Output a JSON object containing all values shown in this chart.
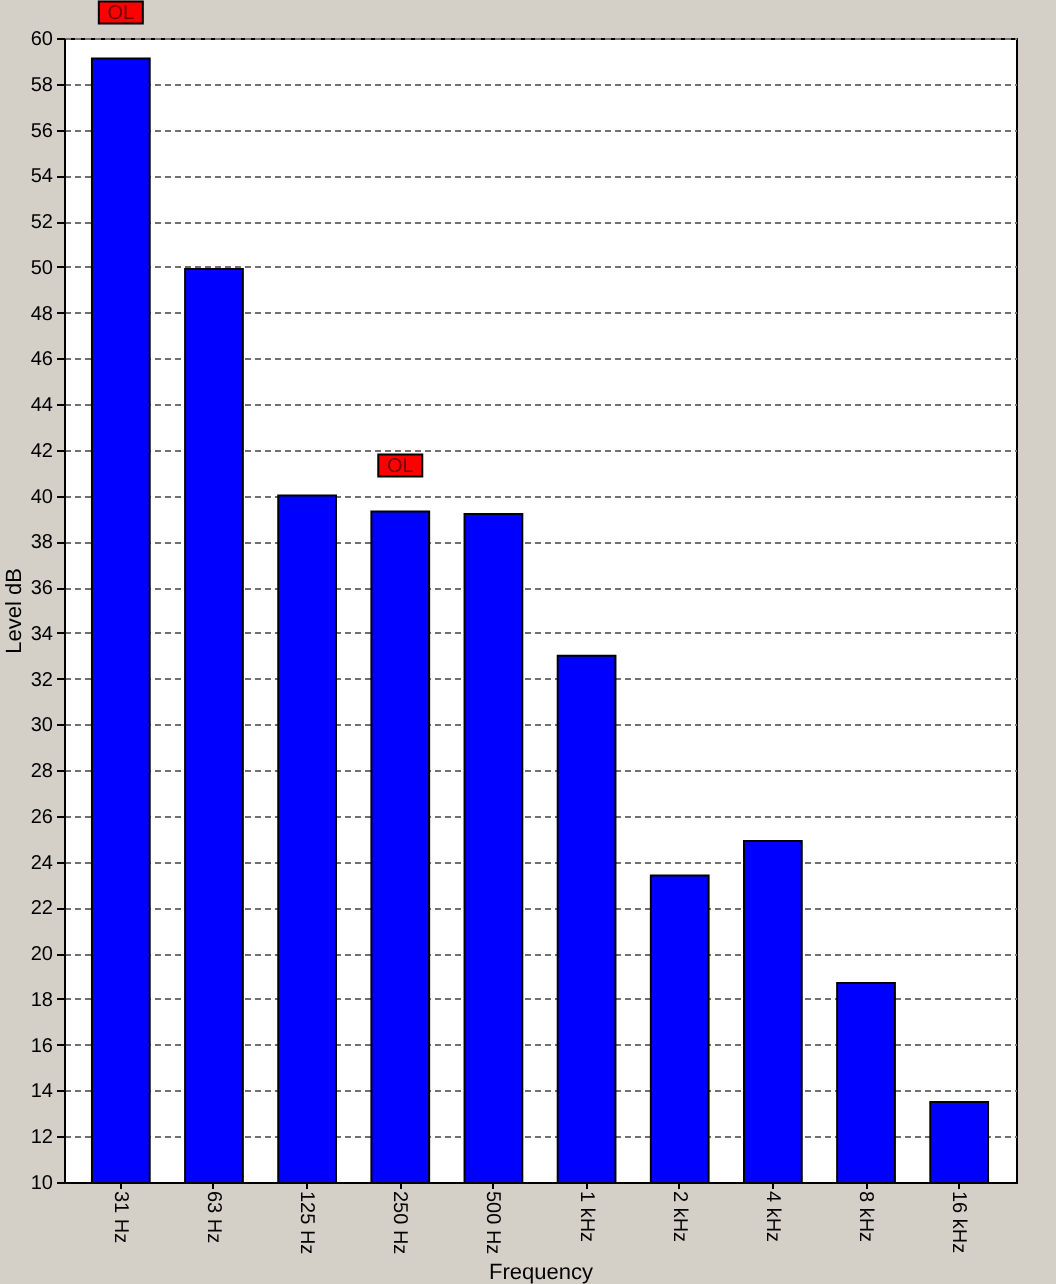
{
  "chart_data": {
    "type": "bar",
    "xlabel": "Frequency",
    "ylabel": "Level dB",
    "categories": [
      "31 Hz",
      "63 Hz",
      "125 Hz",
      "250 Hz",
      "500 Hz",
      "1 kHz",
      "2 kHz",
      "4 kHz",
      "8 kHz",
      "16 kHz"
    ],
    "values": [
      59.1,
      49.9,
      40.0,
      39.3,
      39.2,
      33.0,
      23.4,
      24.9,
      18.7,
      13.5
    ],
    "color": "#0000ff",
    "ylim": [
      10,
      60
    ],
    "yticks": [
      10,
      12,
      14,
      16,
      18,
      20,
      22,
      24,
      26,
      28,
      30,
      32,
      34,
      36,
      38,
      40,
      42,
      44,
      46,
      48,
      50,
      52,
      54,
      56,
      58,
      60
    ],
    "grid": "y",
    "annotations": [
      {
        "text": "OL",
        "x": "31 Hz",
        "y": 59.1
      },
      {
        "text": "OL",
        "x": "250 Hz",
        "y": 39.3
      }
    ]
  }
}
